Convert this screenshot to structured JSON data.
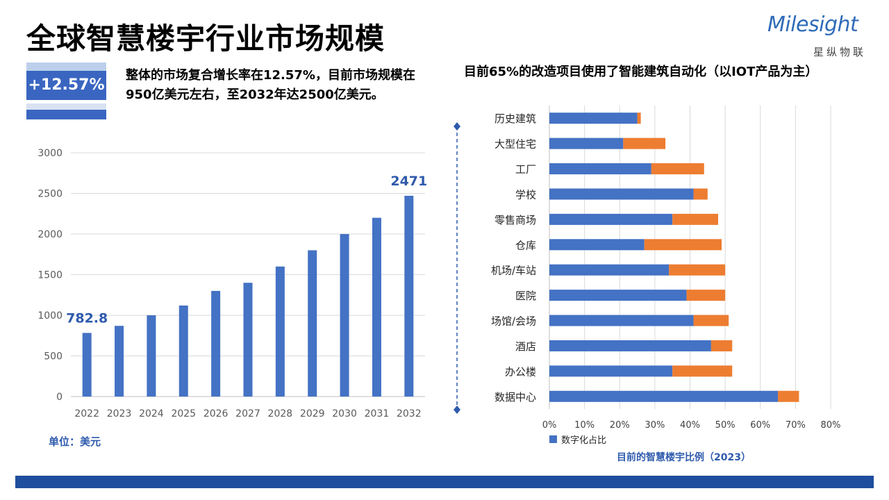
{
  "header": {
    "title": "全球智慧楼宇行业市场规模",
    "logo_word": "Milesight",
    "logo_cn": "星纵物联"
  },
  "left": {
    "badge": "+12.57%",
    "summary": "整体的市场复合增长率在12.57%，目前市场规模在950亿美元左右，至2032年达2500亿美元。",
    "unit": "单位：美元"
  },
  "right": {
    "title": "目前65%的改造项目使用了智能建筑自动化（以IOT产品为主）",
    "caption": "目前的智慧楼宇比例（2023）"
  },
  "colors": {
    "blue": "#4472c4",
    "orange": "#ed7d31",
    "accent_text": "#2e5aac",
    "footer": "#1f4e9e"
  },
  "chart_data": [
    {
      "type": "bar",
      "categories": [
        "2022",
        "2023",
        "2024",
        "2025",
        "2026",
        "2027",
        "2028",
        "2029",
        "2030",
        "2031",
        "2032"
      ],
      "values": [
        782.8,
        870,
        1000,
        1120,
        1300,
        1400,
        1600,
        1800,
        2000,
        2200,
        2471
      ],
      "ylim": [
        0,
        3000
      ],
      "yticks": [
        0,
        500,
        1000,
        1500,
        2000,
        2500,
        3000
      ],
      "data_labels": [
        {
          "index": 0,
          "text": "782.8"
        },
        {
          "index": 10,
          "text": "2471"
        }
      ],
      "grid": true
    },
    {
      "type": "bar",
      "orientation": "horizontal",
      "stacked": true,
      "categories": [
        "历史建筑",
        "大型住宅",
        "工厂",
        "学校",
        "零售商场",
        "仓库",
        "机场/车站",
        "医院",
        "场馆/会场",
        "酒店",
        "办公楼",
        "数据中心"
      ],
      "series": [
        {
          "name": "数字化占比",
          "color": "#4472c4",
          "values": [
            25,
            21,
            29,
            41,
            35,
            27,
            34,
            39,
            41,
            46,
            35,
            65
          ]
        },
        {
          "color": "#ed7d31",
          "values": [
            1,
            12,
            15,
            4,
            13,
            22,
            16,
            11,
            10,
            6,
            17,
            6
          ]
        }
      ],
      "xlim": [
        0,
        80
      ],
      "xticks": [
        "0%",
        "10%",
        "20%",
        "30%",
        "40%",
        "50%",
        "60%",
        "70%",
        "80%"
      ],
      "legend": "bottom-left",
      "grid": true
    }
  ]
}
